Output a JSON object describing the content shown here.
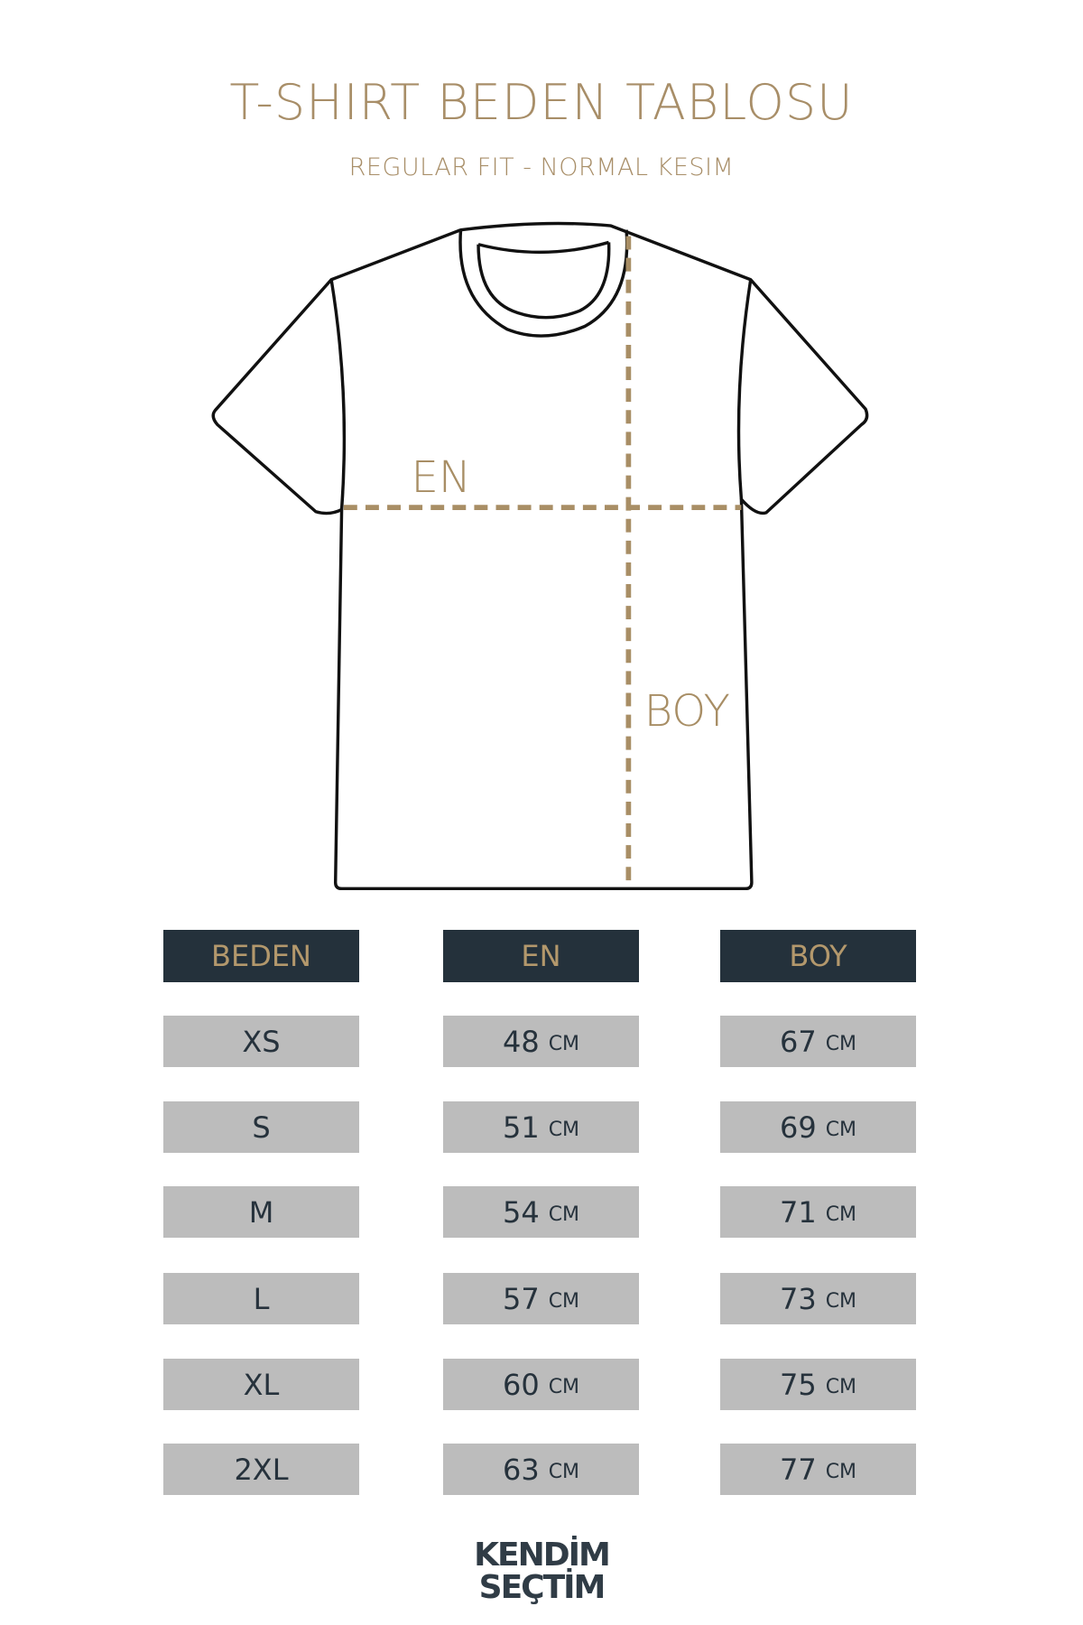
{
  "title": "T-SHIRT BEDEN TABLOSU",
  "subtitle": "REGULAR FIT - NORMAL KESIM",
  "diagram": {
    "width_label": "EN",
    "length_label": "BOY",
    "accent_color": "#a88e65",
    "outline_color": "#111111"
  },
  "table": {
    "headers": [
      "BEDEN",
      "EN",
      "BOY"
    ],
    "unit": "CM",
    "rows": [
      {
        "size": "XS",
        "en": "48",
        "boy": "67"
      },
      {
        "size": "S",
        "en": "51",
        "boy": "69"
      },
      {
        "size": "M",
        "en": "54",
        "boy": "71"
      },
      {
        "size": "L",
        "en": "57",
        "boy": "73"
      },
      {
        "size": "XL",
        "en": "60",
        "boy": "75"
      },
      {
        "size": "2XL",
        "en": "63",
        "boy": "77"
      }
    ],
    "header_bg": "#24313b",
    "cell_bg": "#bcbcbc"
  },
  "logo": {
    "line1": "KENDİM",
    "line2": "SEÇTİM"
  }
}
